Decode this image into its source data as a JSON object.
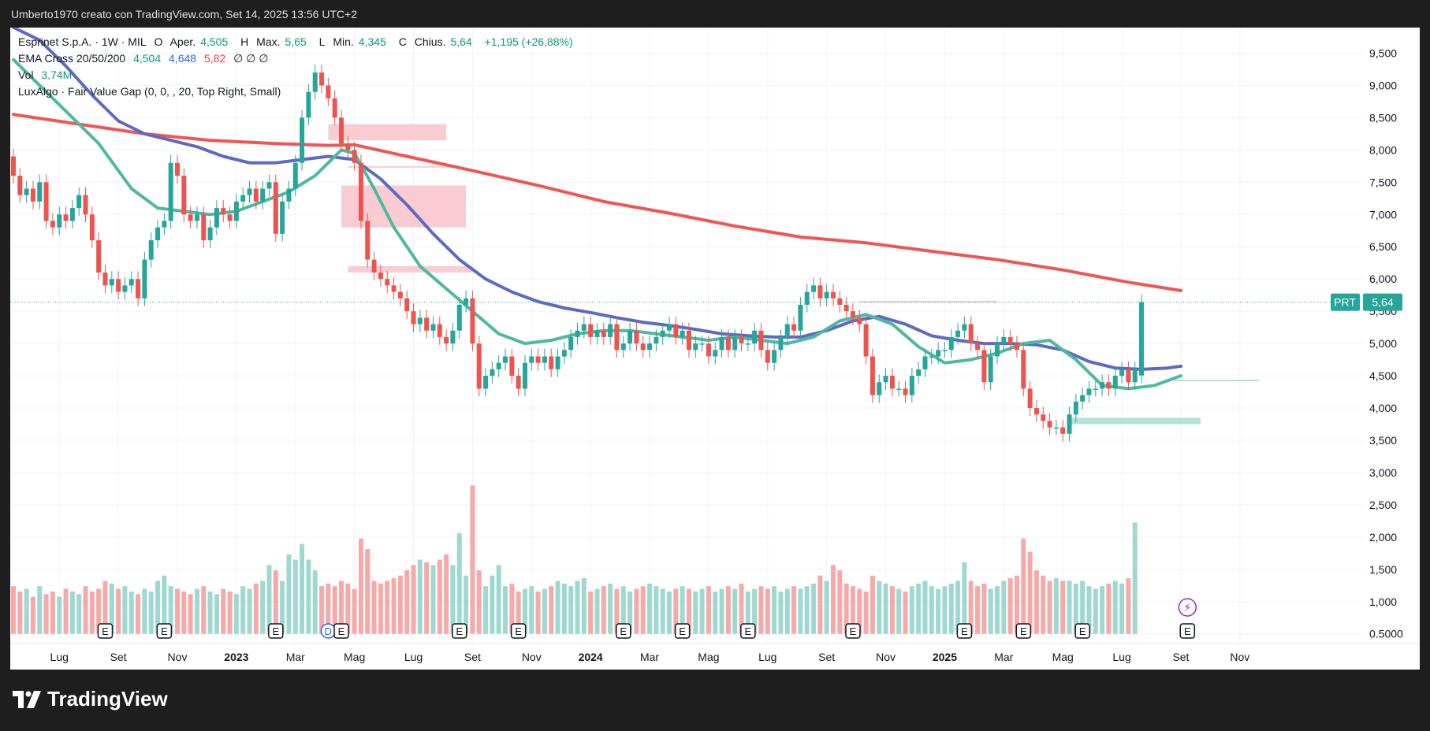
{
  "header": {
    "watermark_text": "Umberto1970 creato con TradingView.com, Set 14, 2025 13:56 UTC+2"
  },
  "legend": {
    "symbol": "Esprinet S.p.A. · 1W · MIL",
    "ohlc": {
      "o_label": "O",
      "o_text": "Aper.",
      "o_value": "4,505",
      "h_label": "H",
      "h_text": "Max.",
      "h_value": "5,65",
      "l_label": "L",
      "l_text": "Min.",
      "l_value": "4,345",
      "c_label": "C",
      "c_text": "Chius.",
      "c_value": "5,64",
      "change": "+1,195 (+26,88%)"
    },
    "ema": {
      "name": "EMA Cross 20/50/200",
      "v1": "4,504",
      "v2": "4,648",
      "v3": "5,82",
      "extra": "∅ ∅ ∅"
    },
    "vol": {
      "name": "Vol",
      "value": "3,74M"
    },
    "luxalgo": "LuxAlgo · Fair Value Gap (0, 0, , 20, Top Right, Small)"
  },
  "price_badge": {
    "ticker": "PRT",
    "value": "5,64"
  },
  "footer": {
    "brand": "TradingView"
  },
  "colors": {
    "up": "#26a69a",
    "down": "#ef5350",
    "ema20": "#4fb99f",
    "ema50": "#5c6bc0",
    "ema200": "#f05555",
    "vol_up": "#9fd8d0",
    "vol_down": "#f6a9a9",
    "fvg_bear": "#f8c3cb",
    "fvg_bull": "#a8dcd3"
  },
  "chart_data": {
    "type": "candlestick",
    "title": "Esprinet S.p.A. · 1W · MIL",
    "ylim": [
      0.35,
      9.75
    ],
    "price_ticks": [
      "9,500",
      "9,000",
      "8,500",
      "8,000",
      "7,500",
      "7,000",
      "6,500",
      "6,000",
      "5,500",
      "5,000",
      "4,500",
      "4,000",
      "3,500",
      "3,000",
      "2,500",
      "2,000",
      "1,500",
      "1,000",
      "0.5000"
    ],
    "price_tick_values": [
      9.5,
      9.0,
      8.5,
      8.0,
      7.5,
      7.0,
      6.5,
      6.0,
      5.5,
      5.0,
      4.5,
      4.0,
      3.5,
      3.0,
      2.5,
      2.0,
      1.5,
      1.0,
      0.5
    ],
    "x_ticks": [
      {
        "label": "Lug",
        "i": 7,
        "bold": false
      },
      {
        "label": "Set",
        "i": 16,
        "bold": false
      },
      {
        "label": "Nov",
        "i": 25,
        "bold": false
      },
      {
        "label": "2023",
        "i": 34,
        "bold": true
      },
      {
        "label": "Mar",
        "i": 43,
        "bold": false
      },
      {
        "label": "Mag",
        "i": 52,
        "bold": false
      },
      {
        "label": "Lug",
        "i": 61,
        "bold": false
      },
      {
        "label": "Set",
        "i": 70,
        "bold": false
      },
      {
        "label": "Nov",
        "i": 79,
        "bold": false
      },
      {
        "label": "2024",
        "i": 88,
        "bold": true
      },
      {
        "label": "Mar",
        "i": 97,
        "bold": false
      },
      {
        "label": "Mag",
        "i": 106,
        "bold": false
      },
      {
        "label": "Lug",
        "i": 115,
        "bold": false
      },
      {
        "label": "Set",
        "i": 124,
        "bold": false
      },
      {
        "label": "Nov",
        "i": 133,
        "bold": false
      },
      {
        "label": "2025",
        "i": 142,
        "bold": true
      },
      {
        "label": "Mar",
        "i": 151,
        "bold": false
      },
      {
        "label": "Mag",
        "i": 160,
        "bold": false
      },
      {
        "label": "Lug",
        "i": 169,
        "bold": false
      },
      {
        "label": "Set",
        "i": 178,
        "bold": false
      },
      {
        "label": "Nov",
        "i": 187,
        "bold": false
      }
    ],
    "closes": [
      7.6,
      7.3,
      7.4,
      7.2,
      7.5,
      6.9,
      6.8,
      7.0,
      6.9,
      7.1,
      7.3,
      7.0,
      6.6,
      6.1,
      5.9,
      6.0,
      5.8,
      5.9,
      6.0,
      5.7,
      6.3,
      6.6,
      6.8,
      6.9,
      7.8,
      7.6,
      7.0,
      6.9,
      7.0,
      6.6,
      6.8,
      7.1,
      7.0,
      6.9,
      7.2,
      7.3,
      7.4,
      7.2,
      7.4,
      7.5,
      6.7,
      7.2,
      7.4,
      7.8,
      8.5,
      8.9,
      9.2,
      9.0,
      8.8,
      8.5,
      8.1,
      8.0,
      7.8,
      6.9,
      6.3,
      6.1,
      6.0,
      5.9,
      5.8,
      5.7,
      5.5,
      5.3,
      5.4,
      5.2,
      5.3,
      5.1,
      5.0,
      5.2,
      5.6,
      5.7,
      5.0,
      4.3,
      4.5,
      4.6,
      4.7,
      4.8,
      4.5,
      4.3,
      4.7,
      4.8,
      4.7,
      4.8,
      4.6,
      4.8,
      4.9,
      5.1,
      5.2,
      5.3,
      5.1,
      5.2,
      5.1,
      5.3,
      4.9,
      5.0,
      5.2,
      5.0,
      4.9,
      5.0,
      5.1,
      5.2,
      5.3,
      5.1,
      5.2,
      4.9,
      5.0,
      5.0,
      4.8,
      4.9,
      5.1,
      4.9,
      5.1,
      5.0,
      5.0,
      5.2,
      4.9,
      4.7,
      4.9,
      5.1,
      5.3,
      5.2,
      5.6,
      5.8,
      5.9,
      5.7,
      5.8,
      5.7,
      5.6,
      5.5,
      5.4,
      5.3,
      4.8,
      4.2,
      4.4,
      4.5,
      4.3,
      4.3,
      4.2,
      4.5,
      4.6,
      4.8,
      4.8,
      4.9,
      4.9,
      5.1,
      5.2,
      5.3,
      5.0,
      4.9,
      4.4,
      4.8,
      5.0,
      5.1,
      5.0,
      4.9,
      4.3,
      4.0,
      3.9,
      3.8,
      3.7,
      3.7,
      3.6,
      3.9,
      4.1,
      4.2,
      4.3,
      4.3,
      4.4,
      4.3,
      4.5,
      4.6,
      4.4,
      4.6,
      5.64
    ],
    "opens": [
      7.9,
      7.6,
      7.3,
      7.4,
      7.2,
      7.5,
      6.9,
      6.8,
      7.0,
      6.9,
      7.1,
      7.3,
      7.0,
      6.6,
      6.1,
      5.9,
      6.0,
      5.8,
      5.9,
      6.0,
      5.7,
      6.3,
      6.6,
      6.8,
      6.9,
      7.8,
      7.6,
      7.0,
      6.9,
      7.0,
      6.6,
      6.8,
      7.1,
      7.0,
      6.9,
      7.2,
      7.3,
      7.4,
      7.2,
      7.4,
      7.5,
      6.7,
      7.2,
      7.4,
      7.8,
      8.5,
      8.9,
      9.2,
      9.0,
      8.8,
      8.5,
      8.1,
      8.0,
      7.8,
      6.9,
      6.3,
      6.1,
      6.0,
      5.9,
      5.8,
      5.7,
      5.5,
      5.3,
      5.4,
      5.2,
      5.3,
      5.1,
      5.0,
      5.2,
      5.6,
      5.7,
      5.0,
      4.3,
      4.5,
      4.6,
      4.7,
      4.8,
      4.5,
      4.3,
      4.7,
      4.8,
      4.7,
      4.8,
      4.6,
      4.8,
      4.9,
      5.1,
      5.2,
      5.3,
      5.1,
      5.2,
      5.1,
      5.3,
      4.9,
      5.0,
      5.2,
      5.0,
      4.9,
      5.0,
      5.1,
      5.2,
      5.3,
      5.1,
      5.2,
      4.9,
      5.0,
      5.0,
      4.8,
      4.9,
      5.1,
      4.9,
      5.1,
      5.0,
      5.0,
      5.2,
      4.9,
      4.7,
      4.9,
      5.1,
      5.3,
      5.2,
      5.6,
      5.8,
      5.9,
      5.7,
      5.8,
      5.7,
      5.6,
      5.5,
      5.4,
      5.3,
      4.8,
      4.2,
      4.4,
      4.5,
      4.3,
      4.3,
      4.2,
      4.5,
      4.6,
      4.8,
      4.8,
      4.9,
      4.9,
      5.1,
      5.2,
      5.3,
      5.0,
      4.9,
      4.4,
      4.8,
      5.0,
      5.1,
      5.0,
      4.9,
      4.3,
      4.0,
      3.9,
      3.8,
      3.7,
      3.7,
      3.6,
      3.9,
      4.1,
      4.2,
      4.3,
      4.3,
      4.4,
      4.3,
      4.5,
      4.6,
      4.4,
      4.505
    ],
    "volumes": [
      0.9,
      0.8,
      0.85,
      0.7,
      0.9,
      0.75,
      0.8,
      0.7,
      0.85,
      0.8,
      0.75,
      0.9,
      0.8,
      0.85,
      1.0,
      0.95,
      0.85,
      0.9,
      0.8,
      0.75,
      0.85,
      0.8,
      1.0,
      1.1,
      0.9,
      0.85,
      0.8,
      0.75,
      0.85,
      0.9,
      0.8,
      0.75,
      0.85,
      0.8,
      0.75,
      0.9,
      0.85,
      0.95,
      1.0,
      1.3,
      1.2,
      1.0,
      1.5,
      1.4,
      1.7,
      1.4,
      1.2,
      0.9,
      0.95,
      0.9,
      1.0,
      0.95,
      0.85,
      1.8,
      1.6,
      1.0,
      0.95,
      1.0,
      1.05,
      1.1,
      1.2,
      1.3,
      1.4,
      1.35,
      1.3,
      1.4,
      1.5,
      1.3,
      1.9,
      1.1,
      2.8,
      1.2,
      0.9,
      1.1,
      1.3,
      0.9,
      0.95,
      0.8,
      0.85,
      0.9,
      0.8,
      0.85,
      0.9,
      1.0,
      0.95,
      0.9,
      1.0,
      1.05,
      0.8,
      0.85,
      0.9,
      0.95,
      0.85,
      0.9,
      0.8,
      0.85,
      0.9,
      0.95,
      0.9,
      0.85,
      0.8,
      0.85,
      0.9,
      0.85,
      0.8,
      0.85,
      0.9,
      0.8,
      0.85,
      0.9,
      0.85,
      0.95,
      0.8,
      0.85,
      0.9,
      0.85,
      0.9,
      0.8,
      0.85,
      0.9,
      0.85,
      0.9,
      0.95,
      1.1,
      1.0,
      1.3,
      1.2,
      0.95,
      0.9,
      0.85,
      0.8,
      1.1,
      1.0,
      0.95,
      0.9,
      0.85,
      0.8,
      0.9,
      0.95,
      1.0,
      0.9,
      0.85,
      0.9,
      0.95,
      1.0,
      1.35,
      1.0,
      0.9,
      0.95,
      0.85,
      0.9,
      1.0,
      1.05,
      1.1,
      1.8,
      1.55,
      1.2,
      1.1,
      1.0,
      1.05,
      1.0,
      1.0,
      0.95,
      1.0,
      0.9,
      0.85,
      0.9,
      0.95,
      1.0,
      0.95,
      1.05,
      2.1
    ],
    "ema20_pts": [
      [
        0,
        9.4
      ],
      [
        4,
        9.0
      ],
      [
        8,
        8.6
      ],
      [
        13,
        8.1
      ],
      [
        18,
        7.4
      ],
      [
        22,
        7.1
      ],
      [
        26,
        7.05
      ],
      [
        30,
        7.0
      ],
      [
        34,
        7.05
      ],
      [
        38,
        7.2
      ],
      [
        42,
        7.35
      ],
      [
        46,
        7.6
      ],
      [
        50,
        8.0
      ],
      [
        52,
        7.95
      ],
      [
        55,
        7.4
      ],
      [
        58,
        6.8
      ],
      [
        62,
        6.2
      ],
      [
        66,
        5.85
      ],
      [
        70,
        5.5
      ],
      [
        74,
        5.15
      ],
      [
        78,
        5.0
      ],
      [
        82,
        5.05
      ],
      [
        86,
        5.15
      ],
      [
        90,
        5.2
      ],
      [
        94,
        5.2
      ],
      [
        98,
        5.15
      ],
      [
        102,
        5.1
      ],
      [
        106,
        5.05
      ],
      [
        110,
        5.1
      ],
      [
        114,
        5.05
      ],
      [
        118,
        5.0
      ],
      [
        122,
        5.1
      ],
      [
        126,
        5.35
      ],
      [
        130,
        5.45
      ],
      [
        134,
        5.3
      ],
      [
        138,
        4.95
      ],
      [
        142,
        4.7
      ],
      [
        146,
        4.75
      ],
      [
        150,
        4.85
      ],
      [
        154,
        5.0
      ],
      [
        158,
        5.05
      ],
      [
        162,
        4.75
      ],
      [
        166,
        4.35
      ],
      [
        170,
        4.3
      ],
      [
        174,
        4.35
      ],
      [
        178,
        4.5
      ]
    ],
    "ema50_pts": [
      [
        0,
        9.9
      ],
      [
        4,
        9.7
      ],
      [
        8,
        9.3
      ],
      [
        12,
        8.85
      ],
      [
        16,
        8.45
      ],
      [
        20,
        8.25
      ],
      [
        24,
        8.15
      ],
      [
        28,
        8.05
      ],
      [
        32,
        7.9
      ],
      [
        36,
        7.8
      ],
      [
        40,
        7.8
      ],
      [
        44,
        7.85
      ],
      [
        48,
        7.9
      ],
      [
        52,
        7.85
      ],
      [
        56,
        7.55
      ],
      [
        60,
        7.15
      ],
      [
        64,
        6.7
      ],
      [
        68,
        6.3
      ],
      [
        72,
        6.0
      ],
      [
        76,
        5.8
      ],
      [
        80,
        5.65
      ],
      [
        84,
        5.55
      ],
      [
        88,
        5.48
      ],
      [
        92,
        5.4
      ],
      [
        96,
        5.33
      ],
      [
        100,
        5.28
      ],
      [
        104,
        5.22
      ],
      [
        108,
        5.15
      ],
      [
        112,
        5.12
      ],
      [
        116,
        5.1
      ],
      [
        120,
        5.1
      ],
      [
        124,
        5.2
      ],
      [
        128,
        5.35
      ],
      [
        132,
        5.42
      ],
      [
        136,
        5.3
      ],
      [
        140,
        5.12
      ],
      [
        144,
        5.05
      ],
      [
        148,
        5.0
      ],
      [
        152,
        5.0
      ],
      [
        156,
        4.98
      ],
      [
        160,
        4.9
      ],
      [
        164,
        4.72
      ],
      [
        168,
        4.62
      ],
      [
        172,
        4.6
      ],
      [
        176,
        4.62
      ],
      [
        178,
        4.648
      ]
    ],
    "ema200_pts": [
      [
        0,
        8.55
      ],
      [
        10,
        8.4
      ],
      [
        20,
        8.25
      ],
      [
        30,
        8.15
      ],
      [
        40,
        8.1
      ],
      [
        48,
        8.07
      ],
      [
        52,
        8.08
      ],
      [
        60,
        7.9
      ],
      [
        70,
        7.68
      ],
      [
        80,
        7.45
      ],
      [
        90,
        7.2
      ],
      [
        100,
        7.02
      ],
      [
        110,
        6.82
      ],
      [
        120,
        6.65
      ],
      [
        130,
        6.56
      ],
      [
        140,
        6.43
      ],
      [
        150,
        6.3
      ],
      [
        160,
        6.14
      ],
      [
        170,
        5.95
      ],
      [
        178,
        5.82
      ]
    ],
    "fvg_zones": [
      {
        "kind": "bearish",
        "from": 48,
        "to": 66,
        "top": 8.4,
        "bottom": 8.15
      },
      {
        "kind": "bearish",
        "from": 51,
        "to": 68,
        "top": 7.75,
        "bottom": 7.73
      },
      {
        "kind": "bearish",
        "from": 50,
        "to": 69,
        "top": 7.45,
        "bottom": 6.8
      },
      {
        "kind": "bearish",
        "from": 51,
        "to": 70,
        "top": 6.2,
        "bottom": 6.1
      },
      {
        "kind": "bearish",
        "from": 129,
        "to": 150,
        "top": 5.66,
        "bottom": 5.64
      },
      {
        "kind": "bullish",
        "from": 161,
        "to": 181,
        "top": 3.85,
        "bottom": 3.75
      },
      {
        "kind": "bullish",
        "from": 177,
        "to": 190,
        "top": 4.44,
        "bottom": 4.42
      }
    ],
    "earnings_markers": [
      {
        "i": 14,
        "label": "E"
      },
      {
        "i": 23,
        "label": "E"
      },
      {
        "i": 40,
        "label": "E"
      },
      {
        "i": 48,
        "label": "D"
      },
      {
        "i": 50,
        "label": "E"
      },
      {
        "i": 68,
        "label": "E"
      },
      {
        "i": 77,
        "label": "E"
      },
      {
        "i": 93,
        "label": "E"
      },
      {
        "i": 102,
        "label": "E"
      },
      {
        "i": 112,
        "label": "E"
      },
      {
        "i": 128,
        "label": "E"
      },
      {
        "i": 145,
        "label": "E"
      },
      {
        "i": 154,
        "label": "E"
      },
      {
        "i": 163,
        "label": "E"
      },
      {
        "i": 179,
        "label": "E"
      }
    ],
    "last_price": 5.64
  }
}
